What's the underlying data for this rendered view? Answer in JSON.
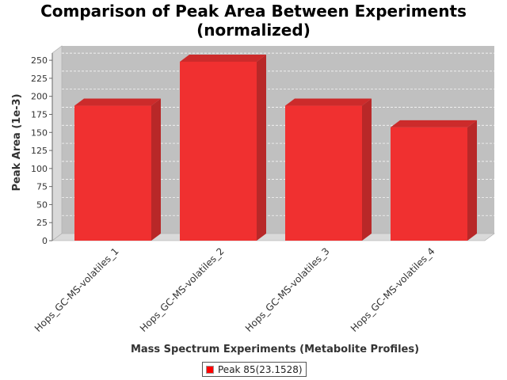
{
  "chart_data": {
    "type": "bar",
    "title": [
      "Comparison of Peak Area Between Experiments",
      "(normalized)"
    ],
    "xlabel": "Mass Spectrum Experiments (Metabolite Profiles)",
    "ylabel": "Peak Area (1e-3)",
    "categories": [
      "Hops_GC-MS-volatiles_1",
      "Hops_GC-MS-volatiles_2",
      "Hops_GC-MS-volatiles_3",
      "Hops_GC-MS-volatiles_4"
    ],
    "series": [
      {
        "name": "Peak 85(23.1528)",
        "values": [
          187,
          248,
          187,
          157
        ]
      }
    ],
    "ylim": [
      0,
      260
    ],
    "yticks": [
      0,
      25,
      50,
      75,
      100,
      125,
      150,
      175,
      200,
      225,
      250
    ],
    "grid": true,
    "legend_position": "bottom",
    "colors": {
      "bar_front": "#f03030",
      "bar_side": "#b82828",
      "bar_top": "#cc2b2b",
      "plot_background": "#c0c0c0",
      "wall": "#d9d9d9"
    }
  }
}
